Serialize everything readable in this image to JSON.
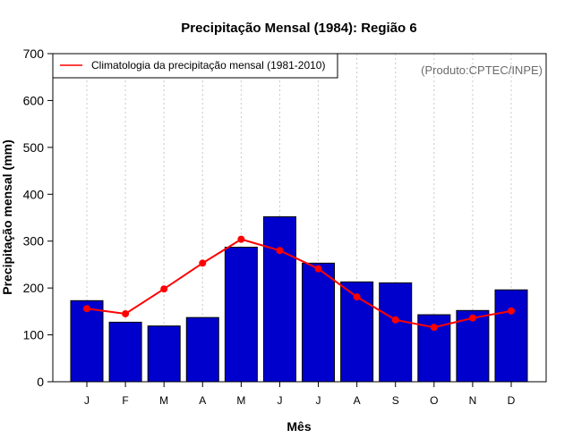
{
  "chart_data": {
    "type": "bar",
    "title": "Precipitação Mensal (1984): Região 6",
    "xlabel": "Mês",
    "ylabel": "Precipitação mensal (mm)",
    "ylim": [
      0,
      700
    ],
    "yticks": [
      0,
      100,
      200,
      300,
      400,
      500,
      600,
      700
    ],
    "grid": "vertical dotted",
    "categories": [
      "J",
      "F",
      "M",
      "A",
      "M",
      "J",
      "J",
      "A",
      "S",
      "O",
      "N",
      "D"
    ],
    "series": [
      {
        "name": "Precipitação mensal (1984)",
        "type": "bar",
        "color": "#0000cd",
        "values": [
          173,
          127,
          119,
          137,
          287,
          352,
          253,
          213,
          211,
          143,
          152,
          196
        ]
      },
      {
        "name": "Climatologia da precipitação mensal (1981-2010)",
        "type": "line",
        "color": "#ff0000",
        "values": [
          156,
          145,
          198,
          253,
          304,
          280,
          241,
          181,
          132,
          116,
          136,
          151
        ]
      }
    ],
    "legend": {
      "position": "top-left",
      "entries": [
        "Climatologia da precipitação mensal (1981-2010)"
      ]
    },
    "annotation": "(Produto:CPTEC/INPE)"
  }
}
